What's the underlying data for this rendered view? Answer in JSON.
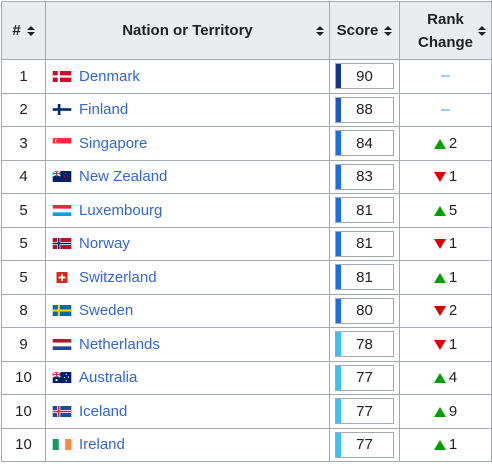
{
  "headers": {
    "rank": "#",
    "nation": "Nation or Territory",
    "score": "Score",
    "change_line1": "Rank",
    "change_line2": "Change"
  },
  "rows": [
    {
      "rank": "1",
      "nation": "Denmark",
      "flag": "denmark",
      "score": "90",
      "score_color": "#12368c",
      "change": "–",
      "dir": "none"
    },
    {
      "rank": "2",
      "nation": "Finland",
      "flag": "finland",
      "score": "88",
      "score_color": "#1f58c7",
      "change": "–",
      "dir": "none"
    },
    {
      "rank": "3",
      "nation": "Singapore",
      "flag": "singapore",
      "score": "84",
      "score_color": "#1c6de8",
      "change": "2",
      "dir": "up"
    },
    {
      "rank": "4",
      "nation": "New Zealand",
      "flag": "newzealand",
      "score": "83",
      "score_color": "#1c6de8",
      "change": "1",
      "dir": "down"
    },
    {
      "rank": "5",
      "nation": "Luxembourg",
      "flag": "luxembourg",
      "score": "81",
      "score_color": "#1c6de8",
      "change": "5",
      "dir": "up"
    },
    {
      "rank": "5",
      "nation": "Norway",
      "flag": "norway",
      "score": "81",
      "score_color": "#1c6de8",
      "change": "1",
      "dir": "down"
    },
    {
      "rank": "5",
      "nation": "Switzerland",
      "flag": "switzerland",
      "score": "81",
      "score_color": "#1c6de8",
      "change": "1",
      "dir": "up"
    },
    {
      "rank": "8",
      "nation": "Sweden",
      "flag": "sweden",
      "score": "80",
      "score_color": "#1c6de8",
      "change": "2",
      "dir": "down"
    },
    {
      "rank": "9",
      "nation": "Netherlands",
      "flag": "netherlands",
      "score": "78",
      "score_color": "#3ec0f4",
      "change": "1",
      "dir": "down"
    },
    {
      "rank": "10",
      "nation": "Australia",
      "flag": "australia",
      "score": "77",
      "score_color": "#3ec0f4",
      "change": "4",
      "dir": "up"
    },
    {
      "rank": "10",
      "nation": "Iceland",
      "flag": "iceland",
      "score": "77",
      "score_color": "#3ec0f4",
      "change": "9",
      "dir": "up"
    },
    {
      "rank": "10",
      "nation": "Ireland",
      "flag": "ireland",
      "score": "77",
      "score_color": "#3ec0f4",
      "change": "1",
      "dir": "up"
    }
  ]
}
